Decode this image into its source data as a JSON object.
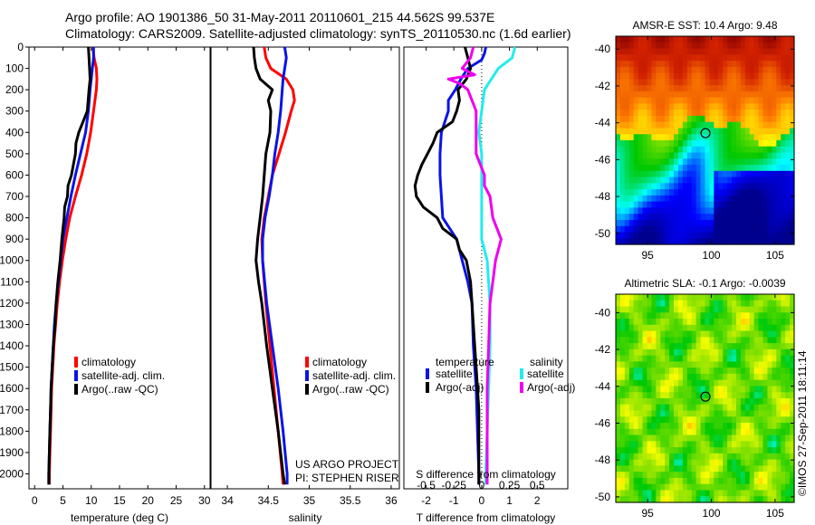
{
  "header": {
    "line1": "Argo profile: AO 1901386_50 31-May-2011 20110601_215 44.562S 99.537E",
    "line2": "Climatology: CARS2009. Satellite-adjusted climatology: synTS_20110530.nc (1.6d earlier)"
  },
  "project": {
    "line1": "US ARGO PROJECT",
    "line2": "PI: STEPHEN RISER"
  },
  "copyright": "©IMOS 27-Sep-2011 18:11:14",
  "colors": {
    "climatology": "#ff0000",
    "satellite": "#0a14e6",
    "argo": "#000000",
    "sat_diff_S": "#22ecec",
    "argo_diff_S": "#ee00ee"
  },
  "chart_data": [
    {
      "type": "line",
      "id": "temperature",
      "xlabel": "temperature (deg C)",
      "xlim": [
        -1,
        31
      ],
      "ylim": [
        2070,
        0
      ],
      "y_ticks": [
        0,
        100,
        200,
        300,
        400,
        500,
        600,
        700,
        800,
        900,
        1000,
        1100,
        1200,
        1300,
        1400,
        1500,
        1600,
        1700,
        1800,
        1900,
        2000
      ],
      "x_ticks": [
        0,
        5,
        10,
        15,
        20,
        25,
        30
      ],
      "x_tick_labels": [
        "0",
        "5",
        "10",
        "15",
        "20",
        "25",
        "30"
      ],
      "legend": [
        "climatology",
        "satellite-adj. clim.",
        "Argo(..raw -QC)"
      ],
      "series": [
        {
          "name": "climatology",
          "color": "#ff0000",
          "depth": [
            0,
            50,
            100,
            150,
            200,
            300,
            400,
            500,
            600,
            700,
            800,
            900,
            1000,
            1100,
            1200,
            1300,
            1400,
            1500,
            1600,
            1700,
            1800,
            1900,
            2000,
            2050
          ],
          "values": [
            10.3,
            10.5,
            10.9,
            11.0,
            10.9,
            10.4,
            9.9,
            9.2,
            8.3,
            7.2,
            6.2,
            5.5,
            4.9,
            4.4,
            4.0,
            3.7,
            3.4,
            3.2,
            3.0,
            2.9,
            2.8,
            2.7,
            2.6,
            2.6
          ]
        },
        {
          "name": "satellite-adj. clim.",
          "color": "#0a14e6",
          "depth": [
            0,
            50,
            100,
            150,
            200,
            300,
            400,
            500,
            600,
            700,
            800,
            900,
            1000,
            1100,
            1200,
            1300,
            1400,
            1500,
            1600,
            1700,
            1800,
            1900,
            2000,
            2050
          ],
          "values": [
            10.4,
            10.4,
            10.2,
            10.0,
            9.8,
            9.5,
            9.0,
            8.1,
            7.2,
            6.4,
            5.7,
            5.0,
            4.6,
            4.2,
            3.8,
            3.5,
            3.3,
            3.1,
            2.9,
            2.8,
            2.7,
            2.6,
            2.5,
            2.5
          ]
        },
        {
          "name": "Argo(..raw -QC)",
          "color": "#000000",
          "depth": [
            0,
            50,
            100,
            150,
            200,
            300,
            400,
            450,
            500,
            600,
            650,
            700,
            750,
            800,
            900,
            1000,
            1100,
            1200,
            1300,
            1400,
            1500,
            1600,
            1700,
            1800,
            1900,
            2000,
            2050
          ],
          "values": [
            9.5,
            9.6,
            9.7,
            9.8,
            9.6,
            9.3,
            7.8,
            7.3,
            7.2,
            6.5,
            5.9,
            5.8,
            5.3,
            5.2,
            4.8,
            4.5,
            4.1,
            3.8,
            3.6,
            3.3,
            3.1,
            2.9,
            2.8,
            2.7,
            2.6,
            2.5,
            2.5
          ]
        }
      ]
    },
    {
      "type": "line",
      "id": "salinity",
      "xlabel": "salinity",
      "xlim": [
        33.8,
        36.1
      ],
      "ylim": [
        2070,
        0
      ],
      "x_ticks": [
        34,
        34.5,
        35,
        35.5,
        36
      ],
      "x_tick_labels": [
        "34",
        "34.5",
        "35",
        "35.5",
        "36"
      ],
      "legend": [
        "climatology",
        "satellite-adj. clim.",
        "Argo(..raw -QC)"
      ],
      "series": [
        {
          "name": "climatology",
          "color": "#ff0000",
          "depth": [
            0,
            50,
            100,
            150,
            200,
            250,
            300,
            400,
            500,
            600,
            700,
            800,
            900,
            1000,
            1200,
            1400,
            1600,
            1800,
            2000,
            2050
          ],
          "values": [
            34.45,
            34.47,
            34.53,
            34.72,
            34.8,
            34.82,
            34.78,
            34.71,
            34.63,
            34.55,
            34.5,
            34.45,
            34.42,
            34.43,
            34.47,
            34.52,
            34.57,
            34.62,
            34.67,
            34.68
          ]
        },
        {
          "name": "satellite-adj. clim.",
          "color": "#0a14e6",
          "depth": [
            0,
            50,
            100,
            150,
            200,
            300,
            400,
            500,
            600,
            700,
            800,
            900,
            1000,
            1200,
            1400,
            1600,
            1800,
            2000,
            2050
          ],
          "values": [
            34.7,
            34.72,
            34.7,
            34.68,
            34.67,
            34.65,
            34.62,
            34.58,
            34.55,
            34.51,
            34.46,
            34.43,
            34.43,
            34.48,
            34.55,
            34.62,
            34.68,
            34.73,
            34.73
          ]
        },
        {
          "name": "Argo(..raw -QC)",
          "color": "#000000",
          "depth": [
            0,
            50,
            100,
            150,
            200,
            250,
            300,
            400,
            500,
            600,
            700,
            800,
            900,
            1000,
            1100,
            1200,
            1400,
            1600,
            1800,
            2000,
            2050
          ],
          "values": [
            34.32,
            34.33,
            34.35,
            34.4,
            34.55,
            34.5,
            34.53,
            34.52,
            34.47,
            34.45,
            34.43,
            34.4,
            34.37,
            34.35,
            34.38,
            34.42,
            34.48,
            34.55,
            34.62,
            34.68,
            34.7
          ]
        }
      ]
    },
    {
      "type": "line",
      "id": "difference",
      "xlabel": "T difference from climatology",
      "xlabel2": "S difference from climatology",
      "xlim": [
        -2.8,
        3.1
      ],
      "ylim": [
        2070,
        0
      ],
      "x_ticks": [
        -2,
        -1,
        0,
        1,
        2
      ],
      "x_tick_labels": [
        "-2",
        "-1",
        "0",
        "1",
        "2"
      ],
      "x2_tick_labels": [
        "-0.5",
        "-0.25",
        "0",
        "0.25",
        "0.5"
      ],
      "legend_t_title": "temperature",
      "legend_s_title": "salinity",
      "legend_t": [
        "satellite",
        "Argo(-adj)"
      ],
      "legend_s": [
        "satellite",
        "Argo(-adj)"
      ],
      "series": [
        {
          "name": "satellite",
          "group": "temperature",
          "color": "#0a14e6",
          "depth": [
            0,
            30,
            60,
            100,
            150,
            200,
            250,
            300,
            400,
            500,
            600,
            700,
            800,
            900,
            1000,
            1100,
            1200,
            1400,
            1600,
            1800,
            2000,
            2050
          ],
          "values": [
            0.15,
            0.1,
            0.0,
            -0.5,
            -0.75,
            -0.95,
            -1.2,
            -1.2,
            -1.45,
            -1.5,
            -1.5,
            -1.45,
            -1.4,
            -0.9,
            -0.7,
            -0.5,
            -0.35,
            -0.3,
            -0.2,
            -0.15,
            -0.1,
            -0.1
          ]
        },
        {
          "name": "Argo(-adj)",
          "group": "temperature",
          "color": "#000000",
          "depth": [
            0,
            50,
            100,
            150,
            200,
            250,
            300,
            350,
            400,
            450,
            500,
            550,
            600,
            650,
            700,
            750,
            800,
            850,
            900,
            950,
            1000,
            1100,
            1200,
            1300,
            1400,
            1500,
            1600,
            1700,
            1800,
            1900,
            2000,
            2050
          ],
          "values": [
            -0.6,
            -0.5,
            -0.4,
            -0.55,
            -0.85,
            -0.8,
            -0.9,
            -1.05,
            -1.6,
            -1.75,
            -1.95,
            -2.15,
            -2.3,
            -2.4,
            -2.35,
            -2.1,
            -1.6,
            -1.4,
            -0.9,
            -0.8,
            -0.55,
            -0.4,
            -0.35,
            -0.3,
            -0.25,
            -0.2,
            -0.15,
            -0.1,
            -0.1,
            -0.1,
            -0.1,
            -0.1
          ]
        },
        {
          "name": "satellite",
          "group": "salinity",
          "color": "#22ecec",
          "depth": [
            0,
            50,
            100,
            200,
            300,
            400,
            500,
            600,
            700,
            800,
            900,
            1000,
            1200,
            1400,
            1600,
            1800,
            2000,
            2050
          ],
          "values": [
            1.2,
            1.1,
            0.6,
            0.1,
            0.0,
            -0.1,
            0.0,
            0.0,
            0.0,
            0.0,
            0.0,
            0.2,
            0.3,
            0.3,
            0.25,
            0.2,
            0.15,
            0.15
          ]
        },
        {
          "name": "Argo(-adj)",
          "group": "salinity",
          "color": "#ee00ee",
          "depth": [
            0,
            50,
            100,
            130,
            150,
            170,
            200,
            250,
            300,
            400,
            500,
            600,
            650,
            700,
            800,
            900,
            1000,
            1100,
            1200,
            1400,
            1600,
            1800,
            2000,
            2050
          ],
          "values": [
            -0.3,
            -0.4,
            -0.7,
            -0.25,
            -1.2,
            -0.8,
            -0.5,
            -0.35,
            -0.2,
            -0.2,
            -0.2,
            0.1,
            0.1,
            0.3,
            0.4,
            0.7,
            0.5,
            0.4,
            0.3,
            0.25,
            0.2,
            0.2,
            0.2,
            0.2
          ]
        }
      ]
    },
    {
      "type": "heatmap",
      "id": "sst",
      "title": "AMSR-E SST: 10.4  Argo: 9.48",
      "x_ticks": [
        95,
        100,
        105
      ],
      "y_ticks": [
        -40,
        -42,
        -44,
        -46,
        -48,
        -50
      ],
      "xlim": [
        92.5,
        106.5
      ],
      "ylim": [
        -50.6,
        -39.3
      ],
      "marker": {
        "lon": 99.54,
        "lat": -44.56
      }
    },
    {
      "type": "heatmap",
      "id": "sla",
      "title": "Altimetric SLA: -0.1  Argo: -0.0039",
      "x_ticks": [
        95,
        100,
        105
      ],
      "y_ticks": [
        -40,
        -42,
        -44,
        -46,
        -48,
        -50
      ],
      "xlim": [
        92.5,
        106.5
      ],
      "ylim": [
        -50.3,
        -39.0
      ],
      "marker": {
        "lon": 99.54,
        "lat": -44.56
      }
    }
  ]
}
